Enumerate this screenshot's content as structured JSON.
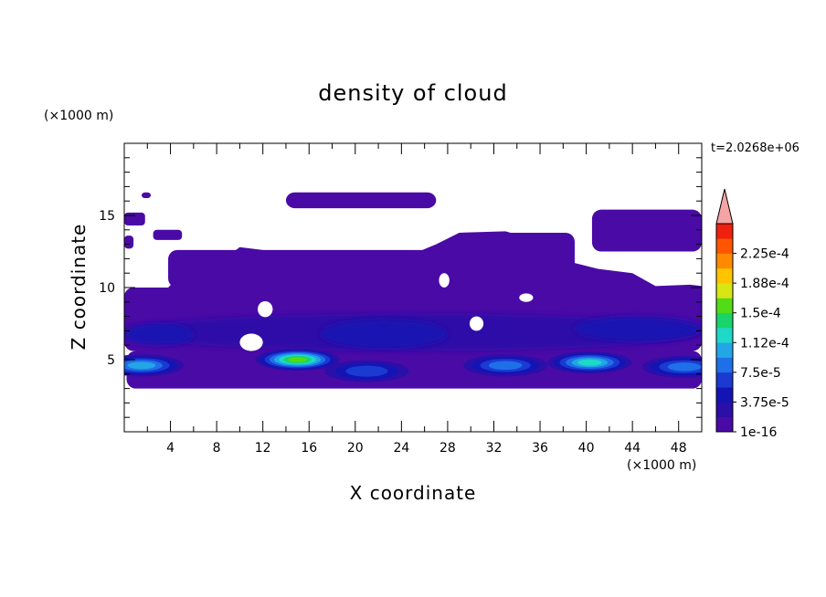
{
  "chart_data": {
    "type": "heatmap",
    "title": "density of cloud",
    "xlabel": "X coordinate",
    "ylabel": "Z coordinate",
    "x_unit": "(×1000 m)",
    "z_unit": "(×1000 m)",
    "time_label": "t=2.0268e+06",
    "xlim": [
      0,
      50
    ],
    "ylim": [
      0,
      20
    ],
    "x_ticks": [
      4,
      8,
      12,
      16,
      20,
      24,
      28,
      32,
      36,
      40,
      44,
      48
    ],
    "y_ticks": [
      5,
      10,
      15
    ],
    "colorbar": {
      "labels": [
        "2.25e-4",
        "1.88e-4",
        "1.5e-4",
        "1.12e-4",
        "7.5e-5",
        "3.75e-5",
        "1e-16"
      ],
      "levels": [
        1e-16,
        1.875e-05,
        3.75e-05,
        5.625e-05,
        7.5e-05,
        9.375e-05,
        0.0001125,
        0.00013125,
        0.00015,
        0.00016875,
        0.0001875,
        0.00020625,
        0.000225,
        0.00024375
      ],
      "colors": [
        "#4a0aa6",
        "#2a0fa8",
        "#1414b4",
        "#1a3ad2",
        "#1f6fe8",
        "#22a6e6",
        "#1ed8c8",
        "#19d46a",
        "#52dc16",
        "#d8e614",
        "#ffc400",
        "#ff8a00",
        "#ff5400",
        "#f02010"
      ],
      "extend_color": "#f4a4a4"
    },
    "base_color": "#4a0aa6",
    "layer_color": "#2a0fa8",
    "regions": [
      {
        "level": 0,
        "x": [
          0.2,
          50
        ],
        "z": [
          3.0,
          5.6
        ],
        "desc": "lower cloud band"
      },
      {
        "level": 0,
        "x": [
          0,
          50
        ],
        "z": [
          5.6,
          10.0
        ]
      },
      {
        "level": 0,
        "x": [
          3.8,
          29.5
        ],
        "z": [
          10.0,
          12.6
        ]
      },
      {
        "level": 0,
        "x": [
          29.5,
          39.0
        ],
        "z": [
          10.0,
          13.8
        ]
      },
      {
        "level": 0,
        "x": [
          14.0,
          27.0
        ],
        "z": [
          15.5,
          16.6
        ]
      },
      {
        "level": 0,
        "x": [
          40.5,
          50
        ],
        "z": [
          12.5,
          15.4
        ]
      }
    ],
    "maxima": [
      {
        "x": 15.0,
        "z": 5.0,
        "value": 0.00015
      },
      {
        "x": 40.3,
        "z": 4.8,
        "value": 0.00013
      },
      {
        "x": 1.5,
        "z": 4.6,
        "value": 0.0001
      },
      {
        "x": 33.0,
        "z": 4.6,
        "value": 9e-05
      },
      {
        "x": 21.0,
        "z": 4.2,
        "value": 7e-05
      },
      {
        "x": 48.5,
        "z": 4.5,
        "value": 8e-05
      }
    ]
  }
}
